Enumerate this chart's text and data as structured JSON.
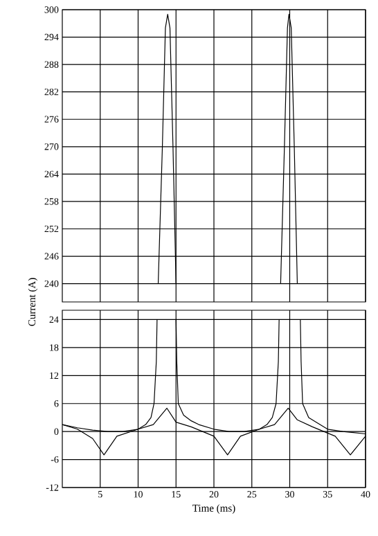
{
  "chart_data": [
    {
      "type": "line",
      "ylabel": "Current (A)",
      "xlim": [
        0,
        40
      ],
      "xticks": [
        5,
        10,
        15,
        20,
        25,
        30,
        35,
        40
      ],
      "ylim": [
        236,
        300
      ],
      "yticks": [
        240,
        246,
        252,
        258,
        264,
        270,
        276,
        282,
        288,
        294,
        300
      ],
      "grid": true,
      "tick_labels": "y",
      "series": [
        {
          "color": "#000000",
          "x": [
            12.65,
            13.2,
            13.6,
            13.9,
            14.2,
            14.6,
            15.0,
            22,
            28.8,
            29.3,
            29.7,
            29.9,
            30.2,
            30.6,
            31.0
          ],
          "values": [
            240,
            270,
            296,
            299,
            296,
            270,
            240,
            null,
            240,
            270,
            296,
            299,
            296,
            270,
            240
          ]
        }
      ]
    },
    {
      "type": "line",
      "xlabel": "Time (ms)",
      "xlim": [
        0,
        40
      ],
      "xticks": [
        5,
        10,
        15,
        20,
        25,
        30,
        35,
        40
      ],
      "ylim": [
        -12,
        26
      ],
      "yticks": [
        -12,
        -6,
        0,
        6,
        12,
        18,
        24
      ],
      "grid": true,
      "series": [
        {
          "color": "#000000",
          "x": [
            0,
            2,
            4,
            6,
            8,
            10,
            11,
            11.7,
            12.1,
            12.4,
            12.5,
            13.8,
            15.0,
            15.1,
            15.3,
            16,
            17,
            18,
            20,
            22,
            24,
            26,
            27,
            27.7,
            28.2,
            28.5,
            28.6,
            30,
            31.4,
            31.5,
            31.7,
            32.5,
            33.5,
            35,
            37,
            40
          ],
          "values": [
            1.5,
            0.8,
            0.3,
            0,
            0,
            0.5,
            1.5,
            3,
            6,
            15,
            24,
            null,
            24,
            15,
            6,
            3.5,
            2.3,
            1.5,
            0.5,
            0,
            0,
            0.5,
            1.5,
            3,
            6,
            15,
            24,
            null,
            24,
            15,
            6,
            3,
            2,
            0.5,
            0,
            -0.5
          ]
        },
        {
          "color": "#000000",
          "x": [
            0,
            2,
            4,
            5.5,
            7.2,
            10,
            12,
            13.8,
            15,
            17,
            20,
            21.8,
            23.5,
            26,
            28,
            29.8,
            31,
            33,
            36,
            38,
            40
          ],
          "values": [
            1.5,
            0.5,
            -1.5,
            -5,
            -1,
            0.5,
            1.5,
            5,
            2,
            1,
            -1,
            -5,
            -1,
            0.5,
            1.5,
            5,
            2.5,
            1,
            -1,
            -5,
            -1
          ]
        }
      ]
    }
  ]
}
